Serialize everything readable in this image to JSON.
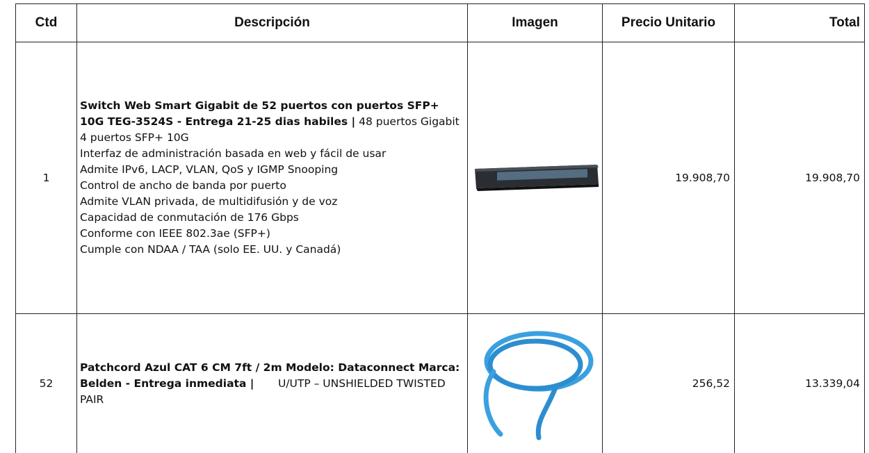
{
  "table": {
    "header": [
      "Ctd",
      "Descripción",
      "Imagen",
      "Precio Unitario",
      "Total"
    ],
    "rows": [
      {
        "qty": "1",
        "description": {
          "bold": "Switch Web Smart Gigabit de 52 puertos con puertos SFP+ 10G TEG-3524S  - Entrega 21-25 dias habiles |",
          "lines": [
            "48 puertos Gigabit",
            "4 puertos SFP+ 10G",
            "Interfaz de administración basada en web y fácil de usar",
            "Admite IPv6, LACP, VLAN, QoS y IGMP Snooping",
            "Control de ancho de banda por puerto",
            "Admite VLAN privada, de multidifusión y de voz",
            "Capacidad de conmutación de 176 Gbps",
            "Conforme con IEEE 802.3ae (SFP+)",
            "Cumple con NDAA / TAA (solo EE. UU. y Canadá)"
          ]
        },
        "unit_price": "19.908,70",
        "total": "19.908,70"
      },
      {
        "qty": "52",
        "description": {
          "bold": "Patchcord Azul CAT 6 CM 7ft / 2m Modelo: Dataconnect Marca: Belden - Entrega inmediata |",
          "lines": [
            "U/UTP – UNSHIELDED TWISTED PAIR"
          ]
        },
        "unit_price": "256,52",
        "total": "13.339,04"
      }
    ]
  }
}
